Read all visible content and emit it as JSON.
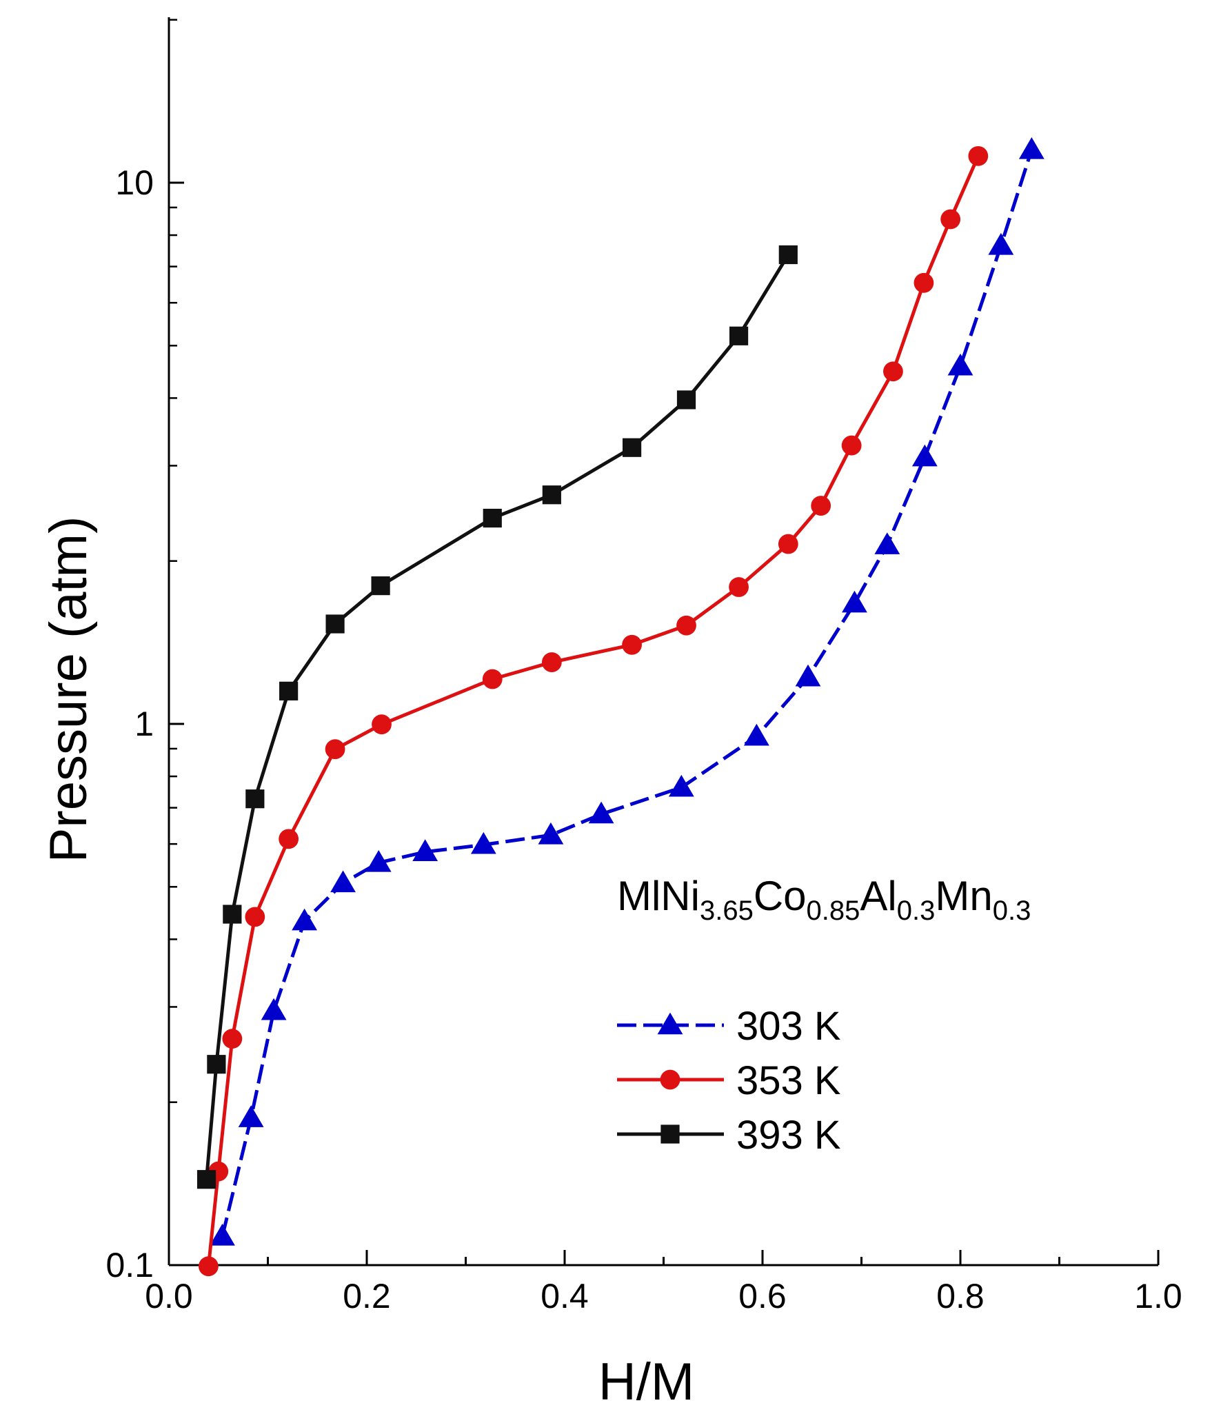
{
  "chart_data": {
    "type": "line",
    "title": "",
    "xlabel": "H/M",
    "ylabel": "Pressure (atm)",
    "xlim": [
      0.0,
      1.0
    ],
    "ylim": [
      0.1,
      20
    ],
    "yscale": "log",
    "grid": false,
    "x_ticks": [
      "0.0",
      "0.2",
      "0.4",
      "0.6",
      "0.8",
      "1.0"
    ],
    "y_ticks": [
      "0.1",
      "1",
      "10"
    ],
    "annotation": {
      "parts": [
        {
          "text": "MlNi",
          "sub": false
        },
        {
          "text": "3.65",
          "sub": true
        },
        {
          "text": "Co",
          "sub": false
        },
        {
          "text": "0.85",
          "sub": true
        },
        {
          "text": "Al",
          "sub": false
        },
        {
          "text": "0.3",
          "sub": true
        },
        {
          "text": "Mn",
          "sub": false
        },
        {
          "text": "0.3",
          "sub": true
        }
      ]
    },
    "legend_position": "center-right",
    "series": [
      {
        "name": "303 K",
        "color": "#0000cc",
        "marker": "triangle",
        "dash": true,
        "x": [
          0.054,
          0.083,
          0.106,
          0.137,
          0.176,
          0.212,
          0.259,
          0.318,
          0.386,
          0.437,
          0.518,
          0.594,
          0.646,
          0.693,
          0.726,
          0.764,
          0.8,
          0.841,
          0.872
        ],
        "y": [
          0.113,
          0.187,
          0.295,
          0.432,
          0.508,
          0.554,
          0.58,
          0.598,
          0.623,
          0.681,
          0.763,
          0.948,
          1.22,
          1.67,
          2.14,
          3.11,
          4.58,
          7.65,
          11.5
        ]
      },
      {
        "name": "353 K",
        "color": "#dd1111",
        "marker": "circle",
        "dash": false,
        "x": [
          0.04,
          0.05,
          0.064,
          0.087,
          0.121,
          0.168,
          0.215,
          0.327,
          0.387,
          0.468,
          0.523,
          0.576,
          0.626,
          0.659,
          0.69,
          0.732,
          0.763,
          0.79,
          0.818
        ],
        "y": [
          0.0995,
          0.149,
          0.262,
          0.44,
          0.613,
          0.898,
          0.998,
          1.21,
          1.3,
          1.4,
          1.52,
          1.79,
          2.15,
          2.53,
          3.27,
          4.48,
          6.53,
          8.56,
          11.2
        ]
      },
      {
        "name": "393 K",
        "color": "#111111",
        "marker": "square",
        "dash": false,
        "x": [
          0.038,
          0.048,
          0.064,
          0.087,
          0.121,
          0.168,
          0.214,
          0.327,
          0.387,
          0.468,
          0.523,
          0.576,
          0.626
        ],
        "y": [
          0.144,
          0.235,
          0.445,
          0.727,
          1.15,
          1.53,
          1.8,
          2.4,
          2.65,
          3.24,
          3.97,
          5.21,
          7.36
        ]
      }
    ]
  }
}
